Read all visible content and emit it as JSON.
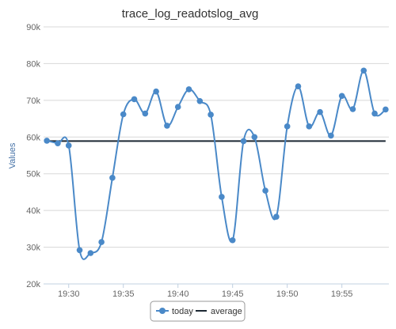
{
  "chart_data": {
    "type": "line",
    "title": "trace_log_readotslog_avg",
    "ylabel": "Values",
    "xlabel": "",
    "ylim": [
      20000,
      90000
    ],
    "y_ticks": [
      "20k",
      "30k",
      "40k",
      "50k",
      "60k",
      "70k",
      "80k",
      "90k"
    ],
    "x_ticks": [
      "19:30",
      "19:35",
      "19:40",
      "19:45",
      "19:50",
      "19:55"
    ],
    "grid": "horizontal",
    "legend_position": "bottom-center",
    "colors": {
      "today": "#4a89c8",
      "average": "#1c2833"
    },
    "series": [
      {
        "name": "today",
        "x": [
          "19:28",
          "19:29",
          "19:30",
          "19:31",
          "19:32",
          "19:33",
          "19:34",
          "19:35",
          "19:36",
          "19:37",
          "19:38",
          "19:39",
          "19:40",
          "19:41",
          "19:42",
          "19:43",
          "19:44",
          "19:45",
          "19:46",
          "19:47",
          "19:48",
          "19:49",
          "19:50",
          "19:51",
          "19:52",
          "19:53",
          "19:54",
          "19:55",
          "19:56",
          "19:57",
          "19:58",
          "19:59"
        ],
        "values": [
          59000,
          58300,
          57700,
          29200,
          28400,
          31400,
          48900,
          66200,
          70300,
          66400,
          72400,
          63100,
          68200,
          73000,
          69800,
          66100,
          43700,
          31900,
          58900,
          60000,
          45400,
          38300,
          62900,
          73800,
          62900,
          66800,
          60400,
          71200,
          67600,
          78100,
          66400,
          67500
        ]
      },
      {
        "name": "average",
        "x": [
          "19:28",
          "19:59"
        ],
        "values": [
          58900,
          58900
        ]
      }
    ]
  }
}
